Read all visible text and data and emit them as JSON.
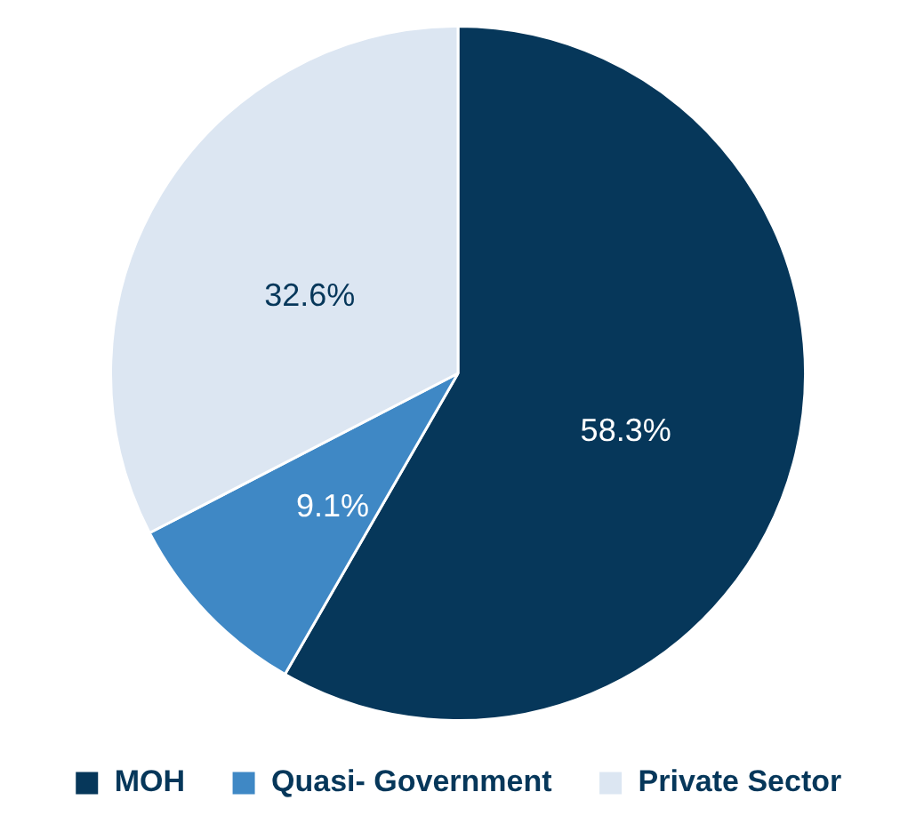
{
  "chart_data": {
    "type": "pie",
    "categories": [
      "MOH",
      "Quasi- Government",
      "Private Sector"
    ],
    "values": [
      58.3,
      9.1,
      32.6
    ],
    "colors": [
      "#06375a",
      "#3f88c5",
      "#dce6f2"
    ],
    "value_labels": [
      "58.3%",
      "9.1%",
      "32.6%"
    ],
    "legend": "bottom"
  }
}
